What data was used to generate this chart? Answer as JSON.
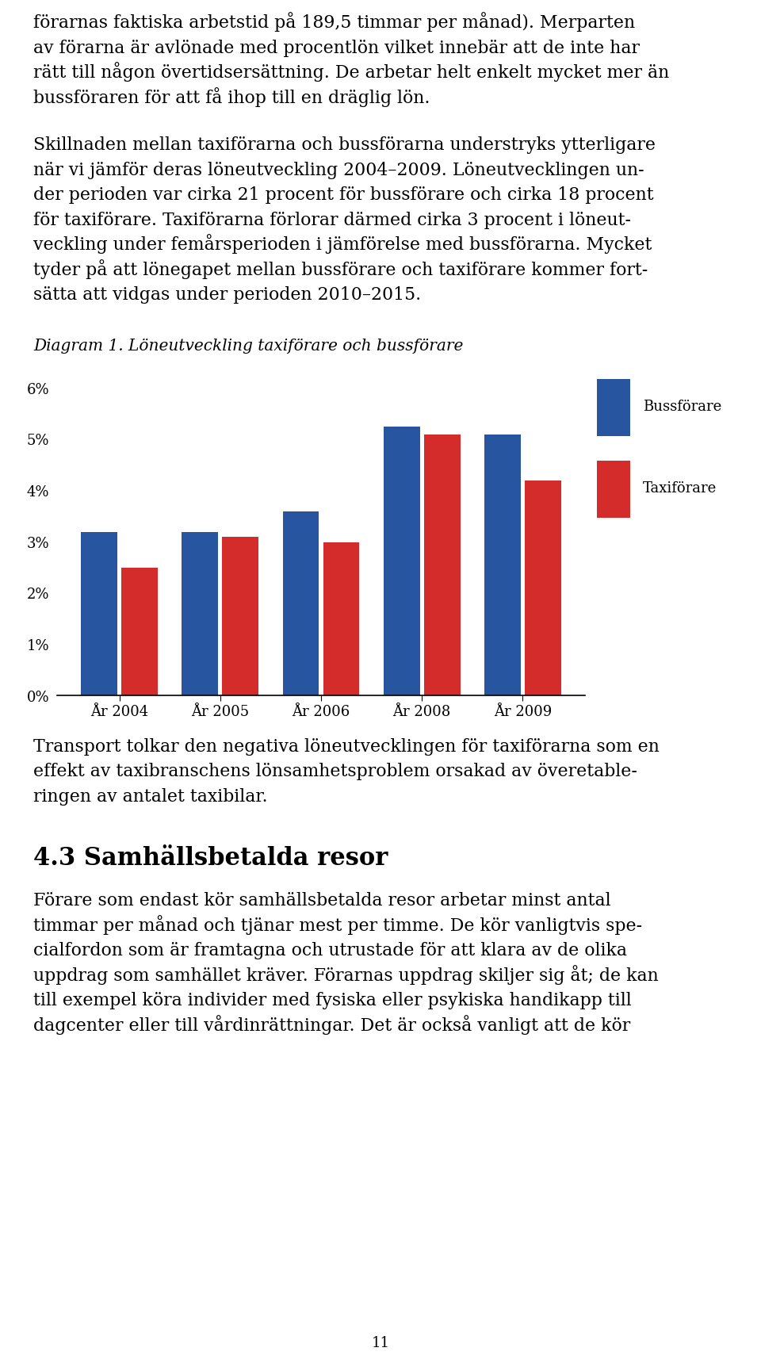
{
  "title": "Diagram 1. Löneutveckling taxiförare och bussförare",
  "categories": [
    "År 2004",
    "År 2005",
    "År 2006",
    "År 2008",
    "År 2009"
  ],
  "buss_values": [
    3.2,
    3.2,
    3.6,
    5.25,
    5.1
  ],
  "taxi_values": [
    2.5,
    3.1,
    3.0,
    5.1,
    4.2
  ],
  "buss_color": "#2855a0",
  "taxi_color": "#d42b2b",
  "ylim": [
    0,
    6.5
  ],
  "yticks": [
    0,
    1,
    2,
    3,
    4,
    5,
    6
  ],
  "ytick_labels": [
    "0%",
    "1%",
    "2%",
    "3%",
    "4%",
    "5%",
    "6%"
  ],
  "legend_buss": "Bussförare",
  "legend_taxi": "Taxiförare",
  "bg_color": "#ffffff",
  "text_color": "#000000",
  "para1_lines": [
    "förarnas faktiska arbetstid på 189,5 timmar per månad). Merparten",
    "av förarna är avlönade med procentlön vilket innebär att de inte har",
    "rätt till någon övertidsersättning. De arbetar helt enkelt mycket mer än",
    "bussföraren för att få ihop till en dräglig lön."
  ],
  "para2_lines": [
    "Skillnaden mellan taxiförarna och bussförarna understryks ytterligare",
    "när vi jämför deras löneutveckling 2004–2009. Löneutvecklingen un-",
    "der perioden var cirka 21 procent för bussförare och cirka 18 procent",
    "för taxiförare. Taxiförarna förlorar därmed cirka 3 procent i löneut-",
    "veckling under femårsperioden i jämförelse med bussförarna. Mycket",
    "tyder på att lönegapet mellan bussförare och taxiförare kommer fort-",
    "sätta att vidgas under perioden 2010–2015."
  ],
  "para3_lines": [
    "Transport tolkar den negativa löneutvecklingen för taxiförarna som en",
    "effekt av taxibranschens lönsamhetsproblem orsakad av överetable-",
    "ringen av antalet taxibilar."
  ],
  "para4_title": "4.3 Samhällsbetalda resor",
  "para4_lines": [
    "Förare som endast kör samhällsbetalda resor arbetar minst antal",
    "timmar per månad och tjänar mest per timme. De kör vanligtvis spe-",
    "cialfordon som är framtagna och utrustade för att klara av de olika",
    "uppdrag som samhället kräver. Förarnas uppdrag skiljer sig åt; de kan",
    "till exempel köra individer med fysiska eller psykiska handikapp till",
    "dagcenter eller till vårdinrättningar. Det är också vanligt att de kör"
  ],
  "page_number": "11"
}
